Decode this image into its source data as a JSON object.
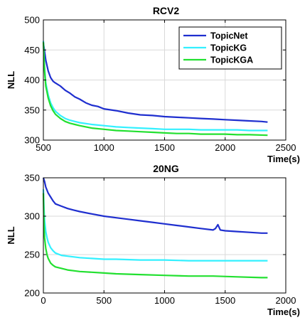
{
  "colors": {
    "TopicNet": "#1f2fcf",
    "TopicKG": "#33f0ff",
    "TopicKGA": "#22e030",
    "grid": "#d9d9d9",
    "axis": "#000000"
  },
  "chart_data": [
    {
      "type": "line",
      "title": "RCV2",
      "xlabel": "Time(s)",
      "ylabel": "NLL",
      "xlim": [
        500,
        2500
      ],
      "ylim": [
        300,
        500
      ],
      "xticks": [
        500,
        1000,
        1500,
        2000,
        2500
      ],
      "yticks": [
        300,
        350,
        400,
        450,
        500
      ],
      "xtick_labels": [
        "500",
        "1000",
        "1500",
        "2000",
        "2500"
      ],
      "ytick_labels": [
        "300",
        "350",
        "400",
        "450",
        "500"
      ],
      "grid": true,
      "legend": "top-right",
      "legend_entries": [
        "TopicNet",
        "TopicKG",
        "TopicKGA"
      ],
      "series": [
        {
          "name": "TopicNet",
          "x": [
            500,
            520,
            540,
            560,
            580,
            600,
            640,
            680,
            720,
            760,
            800,
            850,
            900,
            950,
            1000,
            1100,
            1200,
            1300,
            1400,
            1500,
            1600,
            1700,
            1800,
            1900,
            2000,
            2100,
            2200,
            2300,
            2350
          ],
          "y": [
            462,
            433,
            415,
            404,
            398,
            395,
            390,
            383,
            378,
            372,
            368,
            362,
            358,
            356,
            352,
            349,
            345,
            342,
            341,
            339,
            338,
            337,
            336,
            335,
            334,
            333,
            332,
            331,
            330
          ]
        },
        {
          "name": "TopicKG",
          "x": [
            500,
            510,
            520,
            540,
            560,
            580,
            600,
            640,
            680,
            720,
            760,
            800,
            900,
            1000,
            1100,
            1200,
            1300,
            1400,
            1500,
            1600,
            1700,
            1800,
            1900,
            2000,
            2100,
            2200,
            2350
          ],
          "y": [
            465,
            420,
            395,
            375,
            362,
            354,
            348,
            341,
            336,
            333,
            331,
            329,
            326,
            324,
            322,
            321,
            320,
            319,
            318,
            318,
            318,
            317,
            317,
            317,
            317,
            316,
            316
          ]
        },
        {
          "name": "TopicKGA",
          "x": [
            500,
            510,
            520,
            540,
            560,
            580,
            600,
            640,
            680,
            720,
            760,
            800,
            900,
            1000,
            1100,
            1200,
            1300,
            1400,
            1500,
            1600,
            1700,
            1800,
            1900,
            2000,
            2100,
            2200,
            2350
          ],
          "y": [
            463,
            415,
            390,
            370,
            357,
            349,
            343,
            336,
            331,
            328,
            326,
            324,
            320,
            318,
            316,
            315,
            314,
            313,
            312,
            311,
            311,
            310,
            310,
            310,
            309,
            309,
            308
          ]
        }
      ]
    },
    {
      "type": "line",
      "title": "20NG",
      "xlabel": "Time(s)",
      "ylabel": "NLL",
      "xlim": [
        0,
        2000
      ],
      "ylim": [
        200,
        350
      ],
      "xticks": [
        0,
        500,
        1000,
        1500,
        2000
      ],
      "yticks": [
        200,
        250,
        300,
        350
      ],
      "xtick_labels": [
        "0",
        "500",
        "1000",
        "1500",
        "2000"
      ],
      "ytick_labels": [
        "200",
        "250",
        "300",
        "350"
      ],
      "grid": true,
      "series": [
        {
          "name": "TopicNet",
          "x": [
            0,
            10,
            20,
            40,
            60,
            80,
            100,
            150,
            200,
            250,
            300,
            400,
            500,
            600,
            700,
            800,
            900,
            1000,
            1100,
            1200,
            1300,
            1400,
            1420,
            1440,
            1460,
            1500,
            1600,
            1700,
            1800,
            1850
          ],
          "y": [
            350,
            345,
            338,
            330,
            325,
            320,
            316,
            313,
            310,
            308,
            306,
            303,
            300,
            298,
            296,
            294,
            292,
            290,
            288,
            286,
            284,
            282,
            284,
            289,
            282,
            281,
            280,
            279,
            278,
            278
          ]
        },
        {
          "name": "TopicKG",
          "x": [
            0,
            5,
            10,
            20,
            30,
            40,
            60,
            80,
            100,
            150,
            200,
            300,
            400,
            500,
            600,
            800,
            1000,
            1200,
            1400,
            1600,
            1800,
            1850
          ],
          "y": [
            335,
            310,
            295,
            280,
            272,
            266,
            259,
            255,
            252,
            249,
            248,
            246,
            245,
            244,
            244,
            243,
            243,
            242,
            242,
            242,
            242,
            242
          ]
        },
        {
          "name": "TopicKGA",
          "x": [
            0,
            5,
            10,
            20,
            30,
            40,
            60,
            80,
            100,
            150,
            200,
            300,
            400,
            500,
            600,
            800,
            1000,
            1200,
            1400,
            1600,
            1800,
            1850
          ],
          "y": [
            330,
            290,
            272,
            258,
            250,
            245,
            239,
            236,
            234,
            232,
            230,
            228,
            227,
            226,
            225,
            224,
            223,
            222,
            222,
            221,
            220,
            220
          ]
        }
      ]
    }
  ]
}
